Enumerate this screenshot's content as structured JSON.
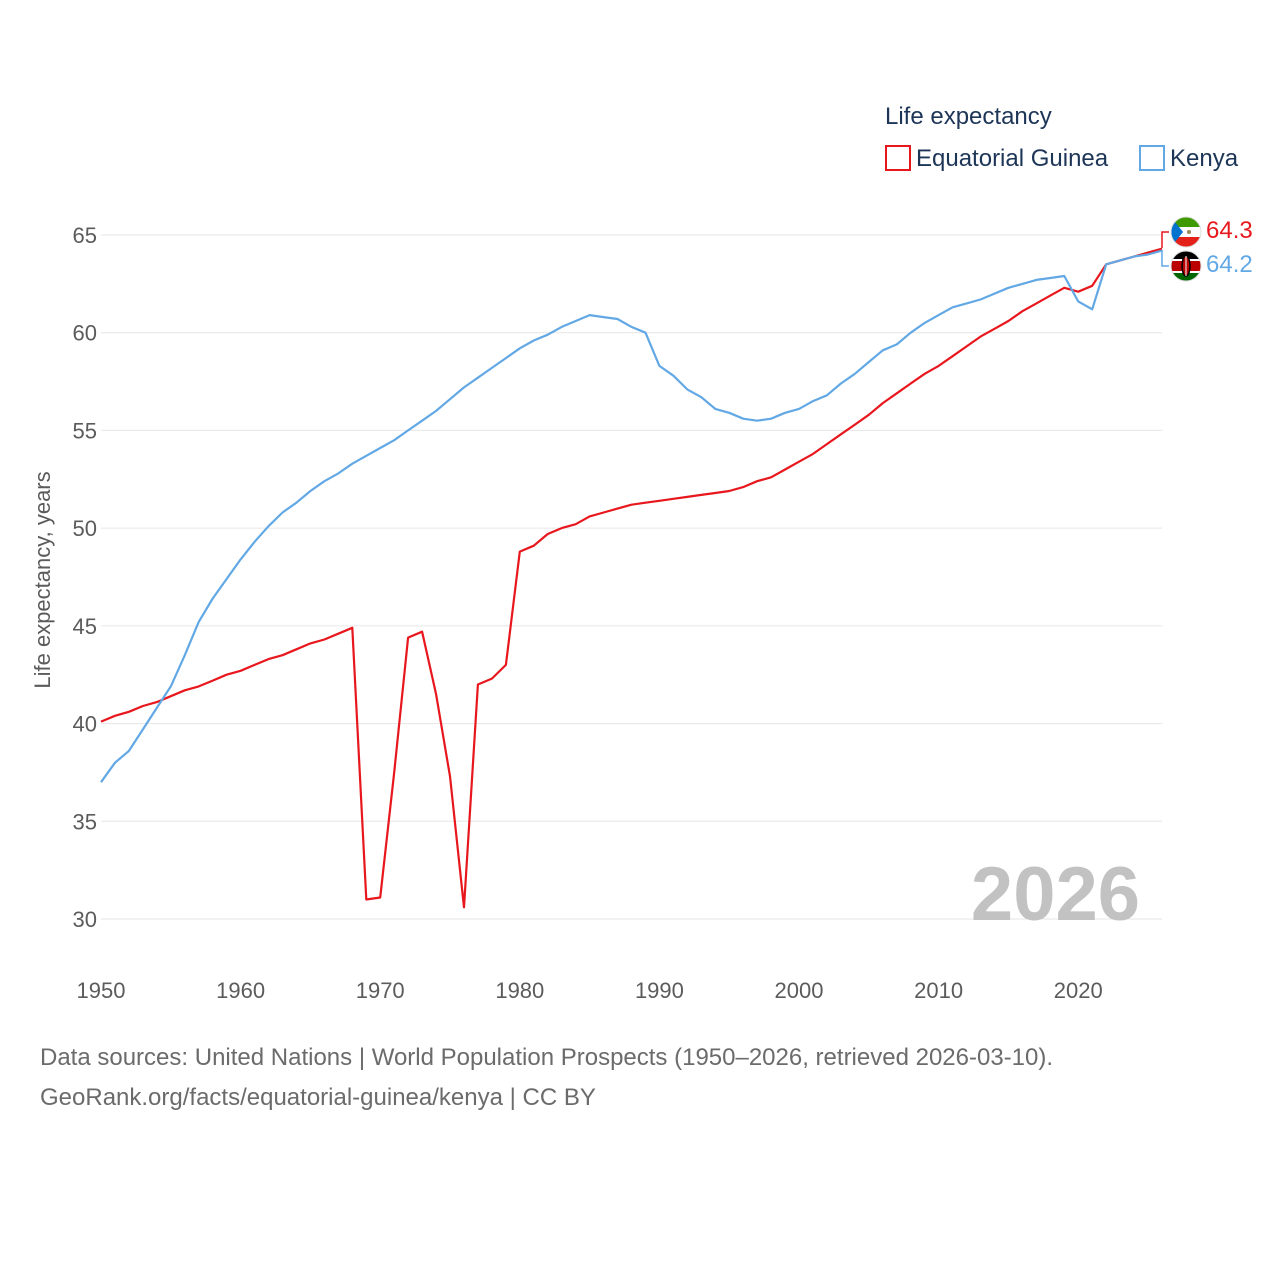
{
  "chart_data": {
    "type": "line",
    "title": "Life expectancy",
    "xlabel": "",
    "ylabel": "Life expectancy, years",
    "xlim": [
      1950,
      2026
    ],
    "ylim": [
      30,
      65
    ],
    "x_ticks": [
      1950,
      1960,
      1970,
      1980,
      1990,
      2000,
      2010,
      2020
    ],
    "y_ticks": [
      30,
      35,
      40,
      45,
      50,
      55,
      60,
      65
    ],
    "grid": true,
    "legend_position": "top-right",
    "current_year_label": "2026",
    "x": [
      1950,
      1951,
      1952,
      1953,
      1954,
      1955,
      1956,
      1957,
      1958,
      1959,
      1960,
      1961,
      1962,
      1963,
      1964,
      1965,
      1966,
      1967,
      1968,
      1969,
      1970,
      1971,
      1972,
      1973,
      1974,
      1975,
      1976,
      1977,
      1978,
      1979,
      1980,
      1981,
      1982,
      1983,
      1984,
      1985,
      1986,
      1987,
      1988,
      1989,
      1990,
      1991,
      1992,
      1993,
      1994,
      1995,
      1996,
      1997,
      1998,
      1999,
      2000,
      2001,
      2002,
      2003,
      2004,
      2005,
      2006,
      2007,
      2008,
      2009,
      2010,
      2011,
      2012,
      2013,
      2014,
      2015,
      2016,
      2017,
      2018,
      2019,
      2020,
      2021,
      2022,
      2023,
      2024,
      2025,
      2026
    ],
    "series": [
      {
        "name": "Equatorial Guinea",
        "color": "#e8171d",
        "end_value": "64.3",
        "flag": "equatorial-guinea-flag",
        "values": [
          40.1,
          40.4,
          40.6,
          40.9,
          41.1,
          41.4,
          41.7,
          41.9,
          42.2,
          42.5,
          42.7,
          43.0,
          43.3,
          43.5,
          43.8,
          44.1,
          44.3,
          44.6,
          44.9,
          31.0,
          31.1,
          37.5,
          44.4,
          44.7,
          41.5,
          37.3,
          30.6,
          42.0,
          42.3,
          43.0,
          48.8,
          49.1,
          49.7,
          50.0,
          50.2,
          50.6,
          50.8,
          51.0,
          51.2,
          51.3,
          51.4,
          51.5,
          51.6,
          51.7,
          51.8,
          51.9,
          52.1,
          52.4,
          52.6,
          53.0,
          53.4,
          53.8,
          54.3,
          54.8,
          55.3,
          55.8,
          56.4,
          56.9,
          57.4,
          57.9,
          58.3,
          58.8,
          59.3,
          59.8,
          60.2,
          60.6,
          61.1,
          61.5,
          61.9,
          62.3,
          62.1,
          62.4,
          63.5,
          63.7,
          63.9,
          64.1,
          64.3
        ]
      },
      {
        "name": "Kenya",
        "color": "#62a8e5",
        "end_value": "64.2",
        "flag": "kenya-flag",
        "values": [
          37.0,
          38.0,
          38.6,
          39.7,
          40.8,
          41.9,
          43.5,
          45.2,
          46.4,
          47.4,
          48.4,
          49.3,
          50.1,
          50.8,
          51.3,
          51.9,
          52.4,
          52.8,
          53.3,
          53.7,
          54.1,
          54.5,
          55.0,
          55.5,
          56.0,
          56.6,
          57.2,
          57.7,
          58.2,
          58.7,
          59.2,
          59.6,
          59.9,
          60.3,
          60.6,
          60.9,
          60.8,
          60.7,
          60.3,
          60.0,
          58.3,
          57.8,
          57.1,
          56.7,
          56.1,
          55.9,
          55.6,
          55.5,
          55.6,
          55.9,
          56.1,
          56.5,
          56.8,
          57.4,
          57.9,
          58.5,
          59.1,
          59.4,
          60.0,
          60.5,
          60.9,
          61.3,
          61.5,
          61.7,
          62.0,
          62.3,
          62.5,
          62.7,
          62.8,
          62.9,
          61.6,
          61.2,
          63.5,
          63.7,
          63.9,
          64.0,
          64.2
        ]
      }
    ]
  },
  "footer": {
    "source": "Data sources: United Nations | World Population Prospects (1950–2026, retrieved 2026-03-10).",
    "credit": "GeoRank.org/facts/equatorial-guinea/kenya | CC BY"
  }
}
